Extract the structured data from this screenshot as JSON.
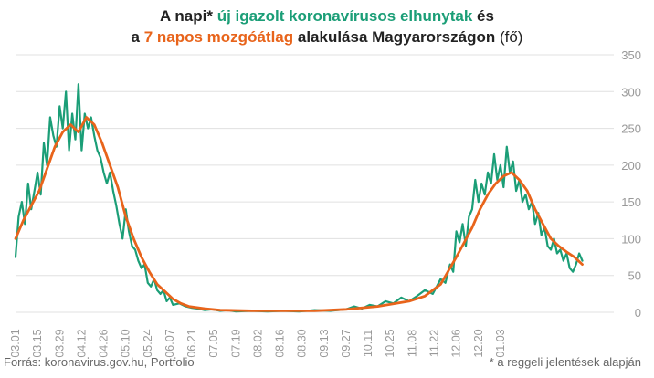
{
  "title": {
    "line1_pre": "A napi* ",
    "line1_green": "új igazolt koronavírusos elhunytak",
    "line1_post": " és",
    "line2_pre": "a ",
    "line2_orange": "7 napos mozgóátlag",
    "line2_post": " alakulása Magyarországon",
    "line2_unit": " (fő)"
  },
  "source_text": "Forrás: koronavirus.gov.hu, Portfolio",
  "note_text": "* a reggeli jelentések alapján",
  "colors": {
    "daily": "#1b9e77",
    "avg": "#e8641b",
    "grid": "#e0e0e0",
    "tick": "#999999"
  },
  "chart_data": {
    "type": "line",
    "title": "A napi* új igazolt koronavírusos elhunytak és a 7 napos mozgóátlag alakulása Magyarországon (fő)",
    "x_tick_labels": [
      "03.01",
      "03.15",
      "03.29",
      "04.12",
      "04.26",
      "05.10",
      "05.24",
      "06.07",
      "06.21",
      "07.05",
      "07.19",
      "08.02",
      "08.16",
      "08.30",
      "09.13",
      "09.27",
      "10.11",
      "10.25",
      "11.08",
      "11.22",
      "12.06",
      "12.20",
      "01.03"
    ],
    "x_tick_interval_days": 14,
    "total_days": 380,
    "ylim": [
      0,
      350
    ],
    "yticks": [
      0,
      50,
      100,
      150,
      200,
      250,
      300,
      350
    ],
    "y_axis_side": "right",
    "grid": true,
    "series": [
      {
        "name": "új igazolt koronavírusos elhunytak",
        "color": "#1b9e77",
        "points": [
          [
            0,
            75
          ],
          [
            2,
            130
          ],
          [
            4,
            150
          ],
          [
            6,
            120
          ],
          [
            8,
            175
          ],
          [
            10,
            140
          ],
          [
            12,
            165
          ],
          [
            14,
            190
          ],
          [
            16,
            160
          ],
          [
            18,
            230
          ],
          [
            20,
            200
          ],
          [
            22,
            265
          ],
          [
            24,
            240
          ],
          [
            26,
            225
          ],
          [
            28,
            280
          ],
          [
            30,
            250
          ],
          [
            32,
            300
          ],
          [
            34,
            220
          ],
          [
            36,
            270
          ],
          [
            38,
            235
          ],
          [
            40,
            310
          ],
          [
            42,
            220
          ],
          [
            44,
            270
          ],
          [
            46,
            250
          ],
          [
            48,
            265
          ],
          [
            50,
            240
          ],
          [
            52,
            220
          ],
          [
            54,
            210
          ],
          [
            56,
            190
          ],
          [
            58,
            175
          ],
          [
            60,
            190
          ],
          [
            62,
            165
          ],
          [
            64,
            145
          ],
          [
            66,
            120
          ],
          [
            68,
            100
          ],
          [
            70,
            140
          ],
          [
            72,
            110
          ],
          [
            74,
            90
          ],
          [
            76,
            85
          ],
          [
            78,
            70
          ],
          [
            80,
            60
          ],
          [
            82,
            65
          ],
          [
            84,
            40
          ],
          [
            86,
            35
          ],
          [
            88,
            45
          ],
          [
            90,
            30
          ],
          [
            92,
            25
          ],
          [
            94,
            30
          ],
          [
            96,
            15
          ],
          [
            98,
            20
          ],
          [
            100,
            10
          ],
          [
            104,
            12
          ],
          [
            108,
            8
          ],
          [
            112,
            6
          ],
          [
            116,
            5
          ],
          [
            120,
            3
          ],
          [
            125,
            4
          ],
          [
            130,
            2
          ],
          [
            135,
            3
          ],
          [
            140,
            1
          ],
          [
            150,
            2
          ],
          [
            160,
            1
          ],
          [
            170,
            2
          ],
          [
            180,
            1
          ],
          [
            190,
            3
          ],
          [
            200,
            2
          ],
          [
            210,
            4
          ],
          [
            215,
            8
          ],
          [
            220,
            5
          ],
          [
            225,
            10
          ],
          [
            230,
            8
          ],
          [
            235,
            15
          ],
          [
            240,
            12
          ],
          [
            245,
            20
          ],
          [
            250,
            15
          ],
          [
            255,
            22
          ],
          [
            260,
            30
          ],
          [
            265,
            25
          ],
          [
            270,
            45
          ],
          [
            273,
            40
          ],
          [
            276,
            65
          ],
          [
            278,
            55
          ],
          [
            280,
            110
          ],
          [
            282,
            95
          ],
          [
            284,
            120
          ],
          [
            286,
            90
          ],
          [
            288,
            130
          ],
          [
            290,
            140
          ],
          [
            292,
            180
          ],
          [
            294,
            150
          ],
          [
            296,
            175
          ],
          [
            298,
            160
          ],
          [
            300,
            190
          ],
          [
            302,
            175
          ],
          [
            304,
            215
          ],
          [
            306,
            180
          ],
          [
            308,
            200
          ],
          [
            310,
            170
          ],
          [
            312,
            225
          ],
          [
            314,
            190
          ],
          [
            316,
            205
          ],
          [
            318,
            165
          ],
          [
            320,
            180
          ],
          [
            322,
            150
          ],
          [
            324,
            160
          ],
          [
            326,
            140
          ],
          [
            328,
            150
          ],
          [
            330,
            120
          ],
          [
            332,
            135
          ],
          [
            334,
            105
          ],
          [
            336,
            115
          ],
          [
            338,
            90
          ],
          [
            340,
            85
          ],
          [
            342,
            100
          ],
          [
            344,
            80
          ],
          [
            346,
            85
          ],
          [
            348,
            70
          ],
          [
            350,
            80
          ],
          [
            352,
            60
          ],
          [
            354,
            55
          ],
          [
            356,
            65
          ],
          [
            358,
            80
          ],
          [
            360,
            70
          ]
        ]
      },
      {
        "name": "7 napos mozgóátlag",
        "color": "#e8641b",
        "points": [
          [
            0,
            100
          ],
          [
            5,
            125
          ],
          [
            10,
            145
          ],
          [
            15,
            165
          ],
          [
            20,
            195
          ],
          [
            25,
            225
          ],
          [
            30,
            245
          ],
          [
            35,
            255
          ],
          [
            40,
            245
          ],
          [
            45,
            265
          ],
          [
            50,
            255
          ],
          [
            55,
            230
          ],
          [
            60,
            200
          ],
          [
            65,
            170
          ],
          [
            70,
            130
          ],
          [
            75,
            100
          ],
          [
            80,
            75
          ],
          [
            85,
            55
          ],
          [
            90,
            38
          ],
          [
            95,
            28
          ],
          [
            100,
            18
          ],
          [
            105,
            12
          ],
          [
            110,
            8
          ],
          [
            120,
            5
          ],
          [
            130,
            3
          ],
          [
            150,
            2
          ],
          [
            170,
            2
          ],
          [
            190,
            2
          ],
          [
            210,
            4
          ],
          [
            230,
            8
          ],
          [
            250,
            15
          ],
          [
            260,
            22
          ],
          [
            270,
            38
          ],
          [
            280,
            75
          ],
          [
            285,
            95
          ],
          [
            290,
            115
          ],
          [
            295,
            140
          ],
          [
            300,
            160
          ],
          [
            305,
            175
          ],
          [
            310,
            185
          ],
          [
            315,
            190
          ],
          [
            320,
            180
          ],
          [
            325,
            165
          ],
          [
            330,
            140
          ],
          [
            335,
            120
          ],
          [
            340,
            100
          ],
          [
            345,
            90
          ],
          [
            350,
            82
          ],
          [
            355,
            75
          ],
          [
            360,
            65
          ]
        ]
      }
    ]
  }
}
